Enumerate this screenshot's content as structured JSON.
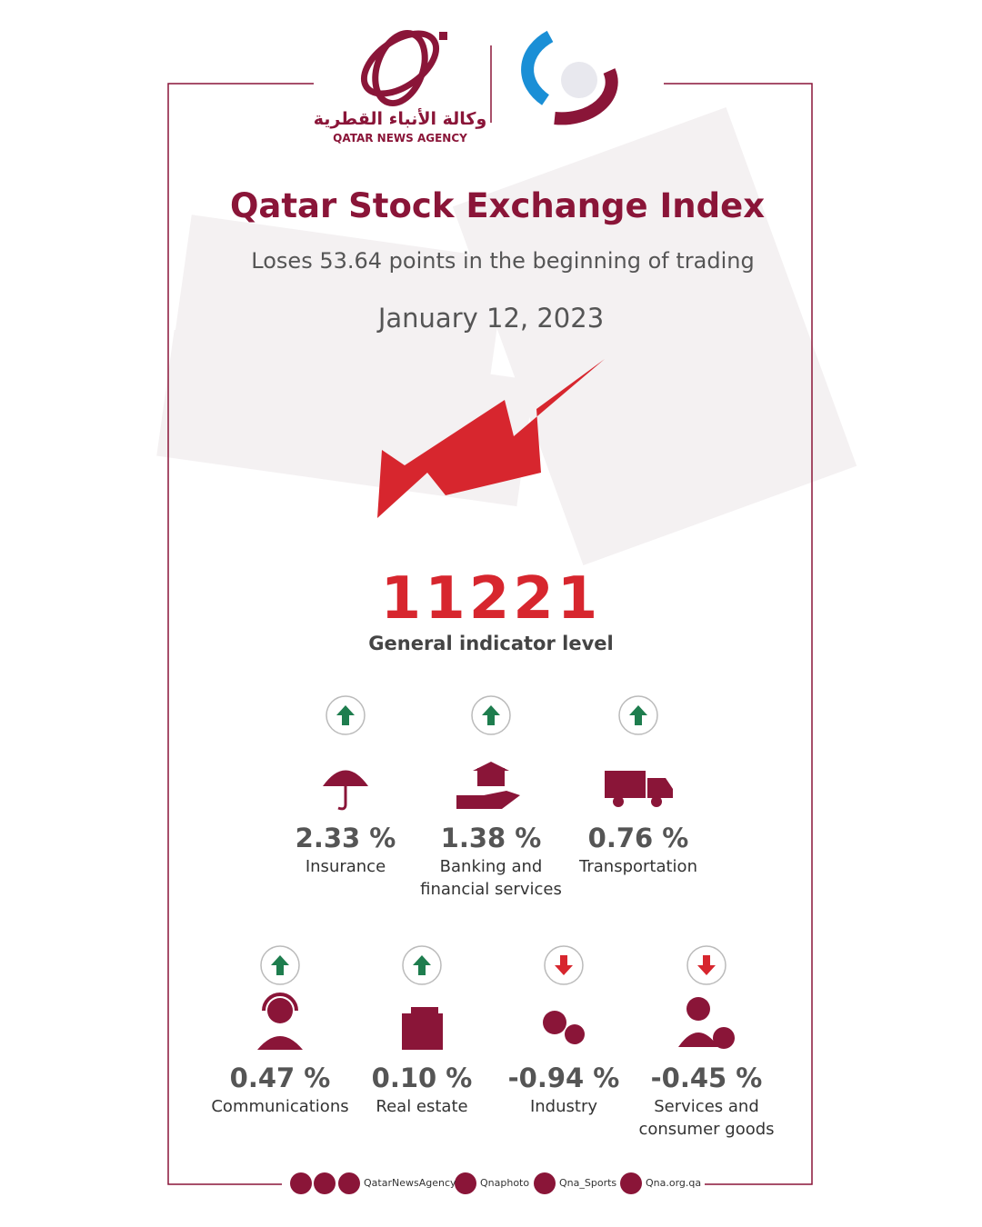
{
  "header": {
    "logo_arabic": "وكالة الأنباء القطرية",
    "logo_english": "QATAR NEWS AGENCY"
  },
  "title": "Qatar Stock Exchange Index",
  "subtitle": "Loses 53.64 points in the beginning of trading",
  "date": "January 12, 2023",
  "index": {
    "value": 11221,
    "label": "General indicator level"
  },
  "sectors": [
    {
      "change": "2.33 %",
      "name": "Insurance",
      "direction": "up"
    },
    {
      "change": "1.38 %",
      "name": "Banking and financial services",
      "direction": "up"
    },
    {
      "change": "0.76 %",
      "name": "Transportation",
      "direction": "up"
    },
    {
      "change": "0.47 %",
      "name": "Communications",
      "direction": "up"
    },
    {
      "change": "0.10 %",
      "name": "Real estate",
      "direction": "up"
    },
    {
      "change": "-0.94 %",
      "name": "Industry",
      "direction": "down"
    },
    {
      "change": "-0.45 %",
      "name": "Services and consumer goods",
      "direction": "down"
    }
  ],
  "footer": {
    "handles": [
      "QatarNewsAgency",
      "Qnaphoto",
      "Qna_Sports",
      "Qna.org.qa"
    ]
  }
}
